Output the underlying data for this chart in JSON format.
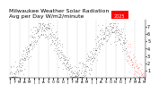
{
  "title": "Milwaukee Weather Solar Radiation\nAvg per Day W/m2/minute",
  "title_fontsize": 4.5,
  "bg_color": "#ffffff",
  "plot_bg": "#ffffff",
  "grid_color": "#aaaaaa",
  "dot_color_red": "#ff0000",
  "dot_color_black": "#000000",
  "legend_box_color": "#ff0000",
  "legend_text": "2025",
  "ylim": [
    0,
    8
  ],
  "yticks": [
    1,
    2,
    3,
    4,
    5,
    6,
    7
  ],
  "ylabel_fontsize": 3.5,
  "xlabel_fontsize": 2.8,
  "num_points": 365,
  "seed": 42
}
